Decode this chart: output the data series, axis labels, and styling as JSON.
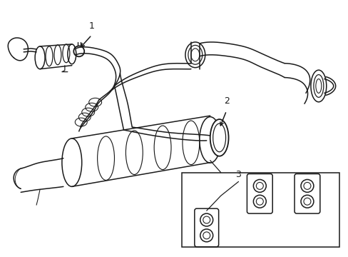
{
  "bg_color": "#ffffff",
  "line_color": "#1a1a1a",
  "line_width": 1.1,
  "fig_width": 4.89,
  "fig_height": 3.6,
  "dpi": 100,
  "label1": "1",
  "label2": "2",
  "label3": "3"
}
